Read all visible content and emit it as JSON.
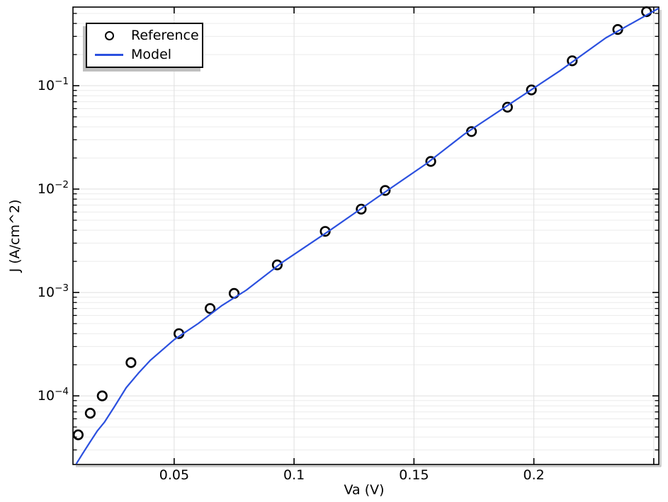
{
  "chart_data": {
    "type": "scatter+line",
    "title": "",
    "xlabel": "Va (V)",
    "ylabel": "J (A/cm^2)",
    "x_scale": "linear",
    "y_scale": "log",
    "x_range": [
      0.0078,
      0.2521
    ],
    "y_range": [
      2.17e-05,
      0.576
    ],
    "grid": true,
    "legend_position": "top-left",
    "x_ticks": [
      {
        "v": 0.05,
        "label": "0.05"
      },
      {
        "v": 0.1,
        "label": "0.1"
      },
      {
        "v": 0.15,
        "label": "0.15"
      },
      {
        "v": 0.2,
        "label": "0.2"
      },
      {
        "v": 0.25,
        "label": ""
      }
    ],
    "y_tick_exponents": [
      -1,
      -2,
      -3,
      -4
    ],
    "series": [
      {
        "name": "Reference",
        "type": "scatter",
        "marker": "open-circle",
        "x": [
          0.01,
          0.015,
          0.02,
          0.032,
          0.052,
          0.065,
          0.075,
          0.093,
          0.113,
          0.128,
          0.138,
          0.157,
          0.174,
          0.189,
          0.199,
          0.216,
          0.235,
          0.247
        ],
        "y": [
          4.2e-05,
          6.8e-05,
          0.0001,
          0.00021,
          0.0004,
          0.0007,
          0.00098,
          0.00185,
          0.0039,
          0.0064,
          0.0097,
          0.0185,
          0.036,
          0.062,
          0.091,
          0.174,
          0.35,
          0.52
        ]
      },
      {
        "name": "Model",
        "type": "line",
        "x": [
          0.0092,
          0.012,
          0.015,
          0.018,
          0.021,
          0.025,
          0.03,
          0.035,
          0.04,
          0.05,
          0.06,
          0.07,
          0.08,
          0.095,
          0.115,
          0.135,
          0.155,
          0.171,
          0.191,
          0.211,
          0.23,
          0.252
        ],
        "y": [
          2.2e-05,
          2.8e-05,
          3.6e-05,
          4.6e-05,
          5.6e-05,
          7.8e-05,
          0.00012,
          0.000165,
          0.00022,
          0.00035,
          0.0005,
          0.00075,
          0.00105,
          0.00195,
          0.004,
          0.0084,
          0.0175,
          0.034,
          0.069,
          0.14,
          0.29,
          0.56
        ]
      }
    ],
    "colors": {
      "model_line": "#2b50df",
      "reference_marker": "#000000",
      "grid_major": "#dfdfdf",
      "grid_minor": "#ececec",
      "frame": "#000000",
      "frame_shadow": "#c8c8c8",
      "legend_shadow": "#bfbfbf",
      "background": "#ffffff"
    }
  }
}
